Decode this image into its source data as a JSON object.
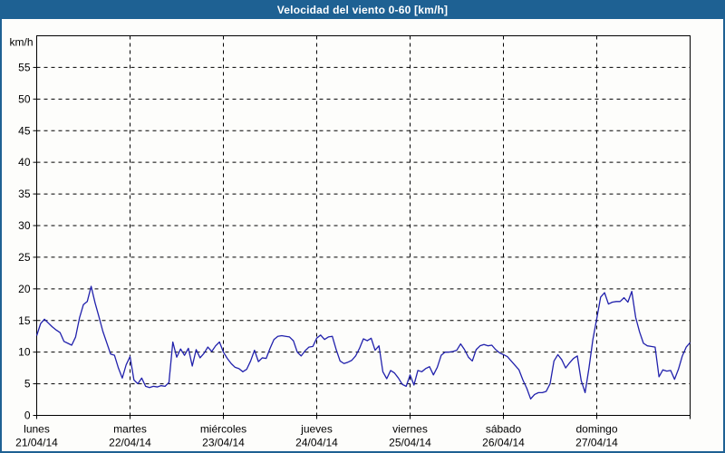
{
  "window": {
    "title": "Velocidad del viento 0-60 [km/h]",
    "title_bar_color": "#1e6193",
    "frame_color": "#1e6193",
    "background_color": "#fdfdfb"
  },
  "chart_data": {
    "type": "line",
    "title": "Velocidad del viento 0-60 [km/h]",
    "ylabel": "km/h",
    "xlabel": "",
    "ylim": [
      0,
      60
    ],
    "ytick_interval": 5,
    "yticks": [
      0,
      5,
      10,
      15,
      20,
      25,
      30,
      35,
      40,
      45,
      50,
      55
    ],
    "grid": "dashed-black",
    "legend_position": "none",
    "line_color": "#2121ac",
    "plot_bg": "#fdfdfb",
    "x_days": [
      {
        "name": "lunes",
        "date": "21/04/14"
      },
      {
        "name": "martes",
        "date": "22/04/14"
      },
      {
        "name": "miércoles",
        "date": "23/04/14"
      },
      {
        "name": "jueves",
        "date": "24/04/14"
      },
      {
        "name": "viernes",
        "date": "25/04/14"
      },
      {
        "name": "sábado",
        "date": "26/04/14"
      },
      {
        "name": "domingo",
        "date": "27/04/14"
      }
    ],
    "series": [
      {
        "name": "Velocidad del viento",
        "unit": "km/h",
        "x_unit": "hours since lunes 21/04/14 00:00",
        "x_step_hours": 1,
        "values": [
          12.6,
          14.5,
          15.2,
          14.6,
          14.0,
          13.5,
          13.1,
          11.7,
          11.4,
          11.1,
          12.4,
          15.4,
          17.5,
          18.0,
          20.4,
          17.8,
          15.6,
          13.3,
          11.5,
          9.7,
          9.5,
          7.5,
          5.9,
          8.0,
          9.3,
          5.6,
          5.0,
          5.9,
          4.6,
          4.4,
          4.6,
          4.5,
          4.7,
          4.6,
          5.2,
          11.6,
          9.2,
          10.5,
          9.5,
          10.6,
          7.8,
          10.4,
          9.1,
          9.8,
          10.8,
          10.1,
          11.0,
          11.6,
          10.0,
          9.0,
          8.2,
          7.6,
          7.4,
          6.9,
          7.3,
          8.6,
          10.3,
          8.5,
          9.1,
          9.0,
          10.6,
          12.0,
          12.5,
          12.6,
          12.5,
          12.4,
          11.8,
          10.0,
          9.4,
          10.2,
          10.8,
          10.9,
          12.2,
          12.7,
          12.0,
          12.4,
          12.5,
          10.4,
          8.6,
          8.2,
          8.4,
          8.7,
          9.4,
          10.6,
          12.1,
          11.8,
          12.2,
          10.3,
          11.0,
          6.9,
          5.8,
          7.1,
          6.7,
          5.9,
          4.9,
          4.6,
          6.4,
          4.8,
          7.1,
          6.9,
          7.4,
          7.7,
          6.4,
          7.6,
          9.5,
          10.0,
          10.0,
          10.1,
          10.3,
          11.3,
          10.4,
          9.2,
          8.6,
          10.4,
          11.0,
          11.2,
          11.0,
          11.1,
          10.4,
          9.9,
          9.6,
          9.3,
          8.6,
          7.9,
          7.2,
          5.6,
          4.3,
          2.6,
          3.3,
          3.6,
          3.6,
          3.8,
          5.0,
          8.6,
          9.6,
          8.8,
          7.5,
          8.3,
          9.0,
          9.4,
          5.5,
          3.6,
          7.5,
          12.0,
          15.3,
          18.7,
          19.4,
          17.6,
          17.9,
          18.0,
          18.0,
          18.6,
          17.9,
          19.6,
          15.5,
          13.2,
          11.4,
          11.0,
          10.9,
          10.8,
          6.1,
          7.2,
          7.0,
          7.1,
          5.7,
          7.3,
          9.4,
          10.8,
          11.5
        ]
      }
    ]
  }
}
